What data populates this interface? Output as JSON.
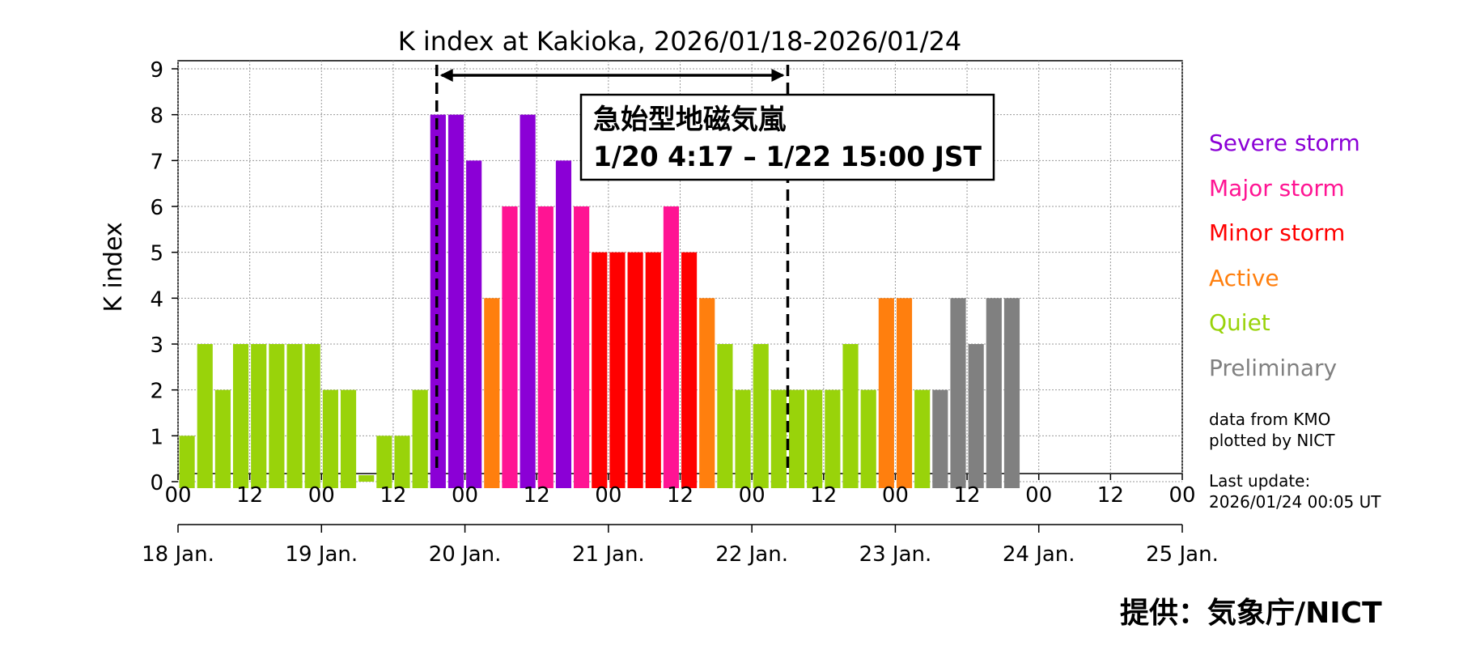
{
  "chart_data": {
    "type": "bar",
    "title": "K index at Kakioka, 2026/01/18-2026/01/24",
    "ylabel": "K index",
    "ylim": [
      0,
      9
    ],
    "yticks": [
      "0",
      "1",
      "2",
      "3",
      "4",
      "5",
      "6",
      "7",
      "8",
      "9"
    ],
    "xticks_hours": [
      "00",
      "12",
      "00",
      "12",
      "00",
      "12",
      "00",
      "12",
      "00",
      "12",
      "00",
      "12",
      "00",
      "12",
      "00"
    ],
    "day_labels": [
      "18 Jan.",
      "19 Jan.",
      "20 Jan.",
      "21 Jan.",
      "22 Jan.",
      "23 Jan.",
      "24 Jan.",
      "25 Jan."
    ],
    "grid": true,
    "interval_hours": 3,
    "values": [
      1,
      3,
      2,
      3,
      3,
      3,
      3,
      3,
      2,
      2,
      0,
      1,
      1,
      2,
      8,
      8,
      7,
      4,
      6,
      8,
      6,
      7,
      6,
      5,
      5,
      5,
      5,
      6,
      5,
      4,
      3,
      2,
      3,
      2,
      2,
      2,
      2,
      3,
      2,
      4,
      4,
      2,
      2,
      4,
      3,
      4,
      4
    ],
    "categories": [
      "Quiet",
      "Quiet",
      "Quiet",
      "Quiet",
      "Quiet",
      "Quiet",
      "Quiet",
      "Quiet",
      "Quiet",
      "Quiet",
      "Quiet",
      "Quiet",
      "Quiet",
      "Quiet",
      "Severe storm",
      "Severe storm",
      "Severe storm",
      "Active",
      "Major storm",
      "Severe storm",
      "Major storm",
      "Severe storm",
      "Major storm",
      "Minor storm",
      "Minor storm",
      "Minor storm",
      "Minor storm",
      "Major storm",
      "Minor storm",
      "Active",
      "Quiet",
      "Quiet",
      "Quiet",
      "Quiet",
      "Quiet",
      "Quiet",
      "Quiet",
      "Quiet",
      "Quiet",
      "Active",
      "Active",
      "Quiet",
      "Preliminary",
      "Preliminary",
      "Preliminary",
      "Preliminary",
      "Preliminary"
    ],
    "colors": {
      "Severe storm": "#8b00d6",
      "Major storm": "#ff1493",
      "Minor storm": "#ff0000",
      "Active": "#ff7f0e",
      "Quiet": "#99d30a",
      "Preliminary": "#808080"
    },
    "annotation": {
      "line1": "急始型地磁気嵐",
      "line2": "1/20 4:17 – 1/22 15:00 JST"
    }
  },
  "legend": [
    {
      "label": "Severe storm",
      "color": "#8b00d6"
    },
    {
      "label": "Major storm",
      "color": "#ff1493"
    },
    {
      "label": "Minor storm",
      "color": "#ff0000"
    },
    {
      "label": "Active",
      "color": "#ff7f0e"
    },
    {
      "label": "Quiet",
      "color": "#99d30a"
    },
    {
      "label": "Preliminary",
      "color": "#808080"
    }
  ],
  "notes": {
    "data_from": "data from KMO",
    "plotted_by": "plotted by NICT",
    "last_update_label": "Last update:",
    "last_update_value": "2026/01/24 00:05 UT"
  },
  "credit": "提供：気象庁/NICT"
}
